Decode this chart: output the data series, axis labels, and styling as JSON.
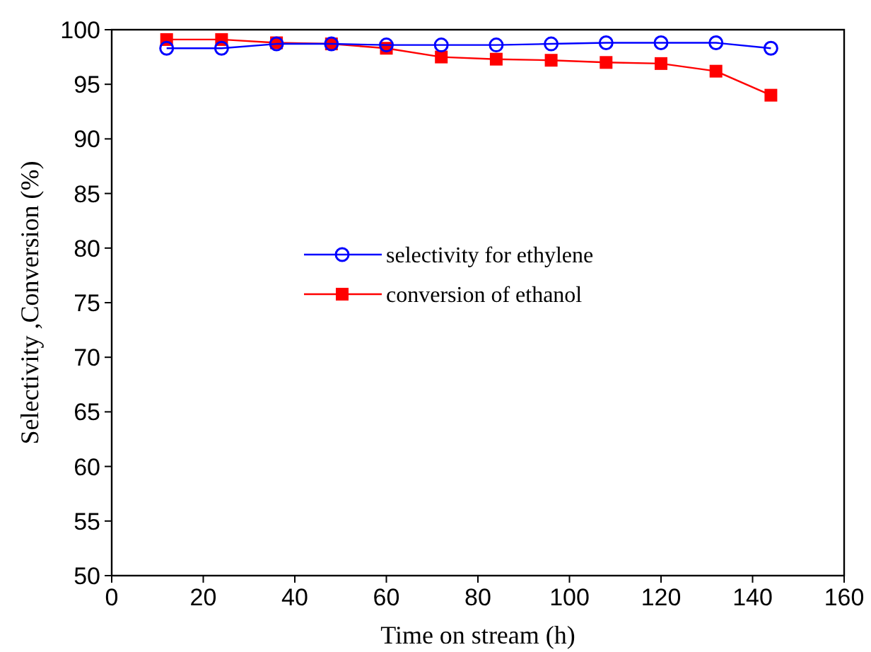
{
  "chart_data": {
    "type": "line",
    "xlabel": "Time on stream (h)",
    "ylabel": "Selectivity ,Conversion (%)",
    "x": [
      12,
      24,
      36,
      48,
      60,
      72,
      84,
      96,
      108,
      120,
      132,
      144
    ],
    "series": [
      {
        "name": "selectivity for ethylene",
        "color": "#0000ff",
        "marker": "circle",
        "values": [
          98.3,
          98.3,
          98.7,
          98.7,
          98.6,
          98.6,
          98.6,
          98.7,
          98.8,
          98.8,
          98.8,
          98.3
        ]
      },
      {
        "name": "conversion of ethanol",
        "color": "#ff0000",
        "marker": "square",
        "values": [
          99.1,
          99.1,
          98.8,
          98.7,
          98.3,
          97.5,
          97.3,
          97.2,
          97.0,
          96.9,
          96.2,
          94.0
        ]
      }
    ],
    "xlim": [
      0,
      160
    ],
    "xticks": [
      0,
      20,
      40,
      60,
      80,
      100,
      120,
      140,
      160
    ],
    "ylim": [
      50,
      100
    ],
    "yticks": [
      50,
      55,
      60,
      65,
      70,
      75,
      80,
      85,
      90,
      95,
      100
    ],
    "legend": "center",
    "grid": false
  }
}
